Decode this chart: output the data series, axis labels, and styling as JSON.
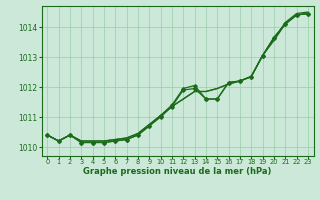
{
  "bg_color": "#cce8d8",
  "grid_color": "#99ccaa",
  "line_color": "#1a6b1a",
  "xlabel": "Graphe pression niveau de la mer (hPa)",
  "xlim": [
    -0.5,
    23.5
  ],
  "ylim": [
    1009.7,
    1014.7
  ],
  "yticks": [
    1010,
    1011,
    1012,
    1013,
    1014
  ],
  "xticks": [
    0,
    1,
    2,
    3,
    4,
    5,
    6,
    7,
    8,
    9,
    10,
    11,
    12,
    13,
    14,
    15,
    16,
    17,
    18,
    19,
    20,
    21,
    22,
    23
  ],
  "smooth1": [
    1010.4,
    1010.2,
    1010.4,
    1010.2,
    1010.2,
    1010.2,
    1010.25,
    1010.3,
    1010.45,
    1010.75,
    1011.05,
    1011.35,
    1011.6,
    1011.85,
    1011.85,
    1011.95,
    1012.1,
    1012.2,
    1012.35,
    1013.05,
    1013.55,
    1014.1,
    1014.4,
    1014.45
  ],
  "smooth2": [
    1010.4,
    1010.2,
    1010.4,
    1010.2,
    1010.2,
    1010.2,
    1010.25,
    1010.3,
    1010.45,
    1010.75,
    1011.05,
    1011.35,
    1011.6,
    1011.85,
    1011.85,
    1011.95,
    1012.1,
    1012.2,
    1012.35,
    1013.05,
    1013.6,
    1014.15,
    1014.45,
    1014.5
  ],
  "jagged1": [
    1010.4,
    1010.2,
    1010.4,
    1010.15,
    1010.15,
    1010.15,
    1010.2,
    1010.25,
    1010.4,
    1010.7,
    1011.0,
    1011.35,
    1011.9,
    1011.95,
    1011.6,
    1011.6,
    1012.15,
    1012.2,
    1012.35,
    1013.05,
    1013.65,
    1014.1,
    1014.4,
    1014.45
  ],
  "jagged2": [
    1010.4,
    1010.2,
    1010.4,
    1010.15,
    1010.15,
    1010.15,
    1010.2,
    1010.25,
    1010.4,
    1010.7,
    1011.05,
    1011.4,
    1011.95,
    1012.05,
    1011.6,
    1011.6,
    1012.15,
    1012.2,
    1012.35,
    1013.05,
    1013.65,
    1014.1,
    1014.4,
    1014.45
  ]
}
